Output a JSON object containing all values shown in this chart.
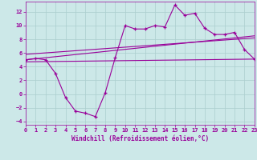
{
  "xlabel": "Windchill (Refroidissement éolien,°C)",
  "xlim": [
    0,
    23
  ],
  "ylim": [
    -4.5,
    13.5
  ],
  "yticks": [
    -4,
    -2,
    0,
    2,
    4,
    6,
    8,
    10,
    12
  ],
  "xticks": [
    0,
    1,
    2,
    3,
    4,
    5,
    6,
    7,
    8,
    9,
    10,
    11,
    12,
    13,
    14,
    15,
    16,
    17,
    18,
    19,
    20,
    21,
    22,
    23
  ],
  "bg_color": "#cce8e8",
  "grid_color": "#aacece",
  "line_color": "#990099",
  "line1_x": [
    0,
    1,
    2,
    3,
    4,
    5,
    6,
    7,
    8,
    9,
    10,
    11,
    12,
    13,
    14,
    15,
    16,
    17,
    18,
    19,
    20,
    21,
    22,
    23
  ],
  "line1_y": [
    5.0,
    5.2,
    5.0,
    3.0,
    -0.5,
    -2.5,
    -2.8,
    -3.3,
    0.2,
    5.3,
    10.0,
    9.5,
    9.5,
    10.0,
    9.8,
    13.0,
    11.5,
    11.8,
    9.6,
    8.7,
    8.7,
    9.0,
    6.5,
    5.1
  ],
  "line2_x": [
    0,
    23
  ],
  "line2_y": [
    5.0,
    8.5
  ],
  "line3_x": [
    0,
    23
  ],
  "line3_y": [
    5.8,
    8.2
  ],
  "line4_x": [
    0,
    23
  ],
  "line4_y": [
    4.7,
    5.1
  ]
}
